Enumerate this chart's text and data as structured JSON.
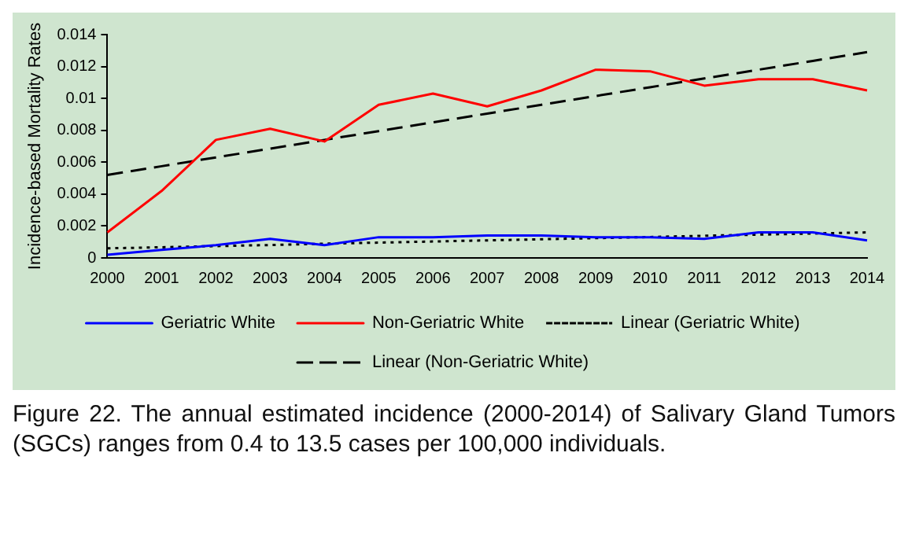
{
  "chart_data": {
    "type": "line",
    "ylabel": "Incidence-based Mortality Rates",
    "categories": [
      "2000",
      "2001",
      "2002",
      "2003",
      "2004",
      "2005",
      "2006",
      "2007",
      "2008",
      "2009",
      "2010",
      "2011",
      "2012",
      "2013",
      "2014"
    ],
    "ylim": [
      0,
      0.014
    ],
    "yticks": [
      0,
      0.002,
      0.004,
      0.006,
      0.008,
      0.01,
      0.012,
      0.014
    ],
    "grid": false,
    "legend": "bottom",
    "marker": "none",
    "series": [
      {
        "name": "Geriatric White",
        "color": "#0000ff",
        "line_style": "solid",
        "values": [
          0.0002,
          0.0005,
          0.0008,
          0.0012,
          0.0008,
          0.0013,
          0.0013,
          0.0014,
          0.0014,
          0.0013,
          0.0013,
          0.0012,
          0.0016,
          0.0016,
          0.0011
        ]
      },
      {
        "name": "Non-Geriatric White",
        "color": "#ff0000",
        "line_style": "solid",
        "values": [
          0.0016,
          0.0042,
          0.0074,
          0.0081,
          0.0073,
          0.0096,
          0.0103,
          0.0095,
          0.0105,
          0.0118,
          0.0117,
          0.0108,
          0.0112,
          0.0112,
          0.0105
        ]
      },
      {
        "name": "Linear (Geriatric White)",
        "color": "#000000",
        "line_style": "dotted",
        "values": [
          0.0006,
          0.00067,
          0.00074,
          0.00081,
          0.00089,
          0.00096,
          0.00103,
          0.0011,
          0.00117,
          0.00124,
          0.00131,
          0.00139,
          0.00146,
          0.00153,
          0.0016
        ]
      },
      {
        "name": "Linear (Non-Geriatric White)",
        "color": "#000000",
        "line_style": "dashed",
        "values": [
          0.0052,
          0.00575,
          0.0063,
          0.00685,
          0.0074,
          0.00795,
          0.0085,
          0.00905,
          0.0096,
          0.01015,
          0.0107,
          0.01125,
          0.0118,
          0.01235,
          0.0129
        ]
      }
    ],
    "annotations": [
      "Figure 22. The annual estimated incidence (2000-2014) of Salivary Gland Tumors (SGCs) ranges from 0.4 to 13.5 cases per 100,000 individuals."
    ]
  }
}
